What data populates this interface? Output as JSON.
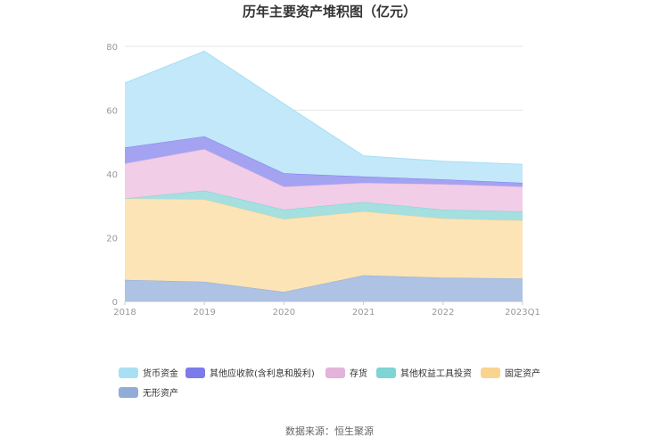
{
  "chart_data": {
    "type": "area",
    "stacked": true,
    "title": "历年主要资产堆积图（亿元）",
    "categories": [
      "2018",
      "2019",
      "2020",
      "2021",
      "2022",
      "2023Q1"
    ],
    "ylim": [
      0,
      80
    ],
    "yticks": [
      0,
      20,
      40,
      60,
      80
    ],
    "grid": true,
    "series": [
      {
        "name": "无形资产",
        "color": "#91acd9",
        "fill": "#aec2e3",
        "values": [
          6.8,
          6.2,
          3.0,
          8.2,
          7.5,
          7.2
        ]
      },
      {
        "name": "固定资产",
        "color": "#f9d48f",
        "fill": "#fde4b6",
        "values": [
          25.5,
          25.8,
          22.8,
          20.0,
          18.5,
          18.2
        ]
      },
      {
        "name": "其他权益工具投资",
        "color": "#7fd4d4",
        "fill": "#a5dfdf",
        "values": [
          0.0,
          2.8,
          3.0,
          3.0,
          2.8,
          2.8
        ]
      },
      {
        "name": "存货",
        "color": "#e3b3db",
        "fill": "#f1cde7",
        "values": [
          11.0,
          13.0,
          7.2,
          6.0,
          8.0,
          7.8
        ]
      },
      {
        "name": "其他应收款(含利息和股利)",
        "color": "#7c7bec",
        "fill": "#a3a3f2",
        "values": [
          5.0,
          4.0,
          4.2,
          2.0,
          1.5,
          1.2
        ]
      },
      {
        "name": "货币资金",
        "color": "#a8dff5",
        "fill": "#c3e8f9",
        "values": [
          20.2,
          26.7,
          21.8,
          6.5,
          5.7,
          5.8
        ]
      }
    ]
  },
  "legend_items": [
    {
      "label": "货币资金",
      "color": "#a8dff5"
    },
    {
      "label": "其他应收款(含利息和股利)",
      "color": "#7c7bec"
    },
    {
      "label": "存货",
      "color": "#e3b3db"
    },
    {
      "label": "其他权益工具投资",
      "color": "#7fd4d4"
    },
    {
      "label": "固定资产",
      "color": "#f9d48f"
    },
    {
      "label": "无形资产",
      "color": "#91acd9"
    }
  ],
  "source": "数据来源：恒生聚源"
}
